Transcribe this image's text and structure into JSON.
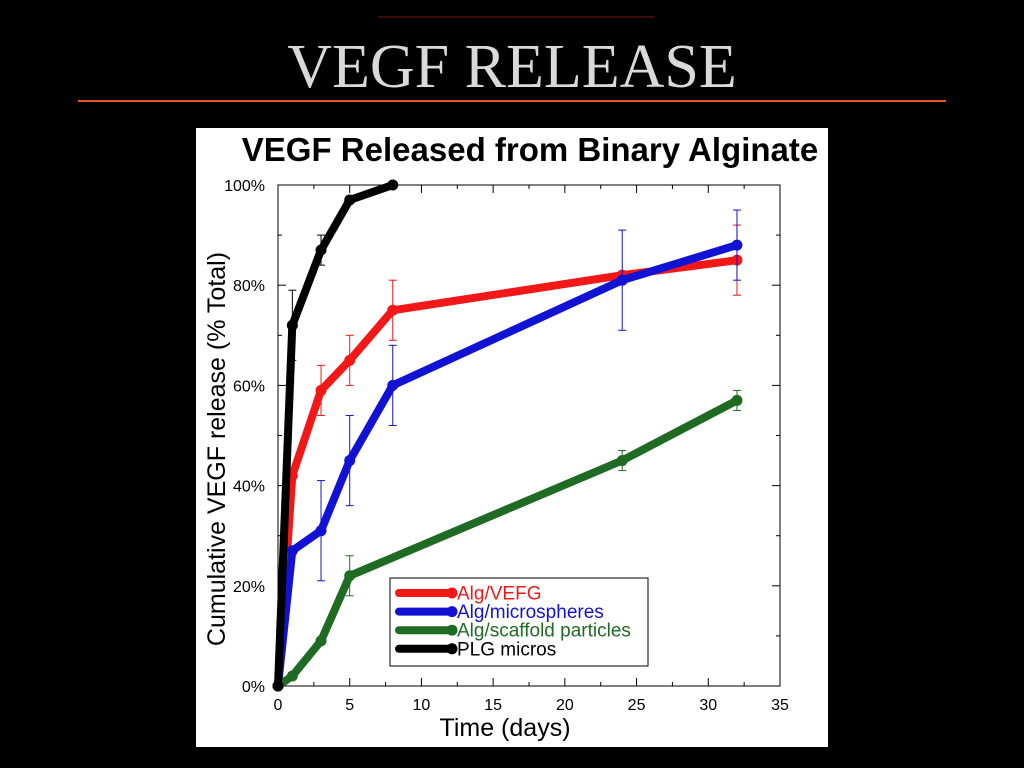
{
  "slide": {
    "title": "VEGF RELEASE"
  },
  "chart_data": {
    "type": "line",
    "title": "VEGF Released from Binary Alginate",
    "xlabel": "Time (days)",
    "ylabel": "Cumulative VEGF release (% Total)",
    "xlim": [
      0,
      35
    ],
    "ylim": [
      0,
      100
    ],
    "xticks": [
      0,
      5,
      10,
      15,
      20,
      25,
      30,
      35
    ],
    "xtick_labels": [
      "0",
      "5",
      "10",
      "15",
      "20",
      "25",
      "30",
      "35"
    ],
    "yticks": [
      0,
      20,
      40,
      60,
      80,
      100
    ],
    "ytick_labels": [
      "0%",
      "20%",
      "40%",
      "60%",
      "80%",
      "100%"
    ],
    "grid": false,
    "legend_position": "lower-center",
    "series": [
      {
        "name": "Alg/VEFG",
        "color": "#f21818",
        "x": [
          0,
          1,
          3,
          5,
          8,
          24,
          32
        ],
        "y": [
          0,
          42,
          59,
          65,
          75,
          82,
          85
        ],
        "error": [
          null,
          null,
          5,
          5,
          6,
          null,
          7
        ]
      },
      {
        "name": "Alg/microspheres",
        "color": "#1212d4",
        "x": [
          0,
          1,
          3,
          5,
          8,
          24,
          32
        ],
        "y": [
          0,
          27,
          31,
          45,
          60,
          81,
          88
        ],
        "error": [
          null,
          null,
          10,
          9,
          8,
          10,
          7
        ]
      },
      {
        "name": "Alg/scaffold particles",
        "color": "#1f6b24",
        "x": [
          0,
          1,
          3,
          5,
          24,
          32
        ],
        "y": [
          0,
          2,
          9,
          22,
          45,
          57
        ],
        "error": [
          null,
          null,
          null,
          4,
          2,
          2
        ]
      },
      {
        "name": "PLG micros",
        "color": "#000000",
        "x": [
          0,
          1,
          3,
          5,
          8
        ],
        "y": [
          0,
          72,
          87,
          97,
          100
        ],
        "error": [
          null,
          7,
          3,
          null,
          null
        ]
      }
    ]
  }
}
